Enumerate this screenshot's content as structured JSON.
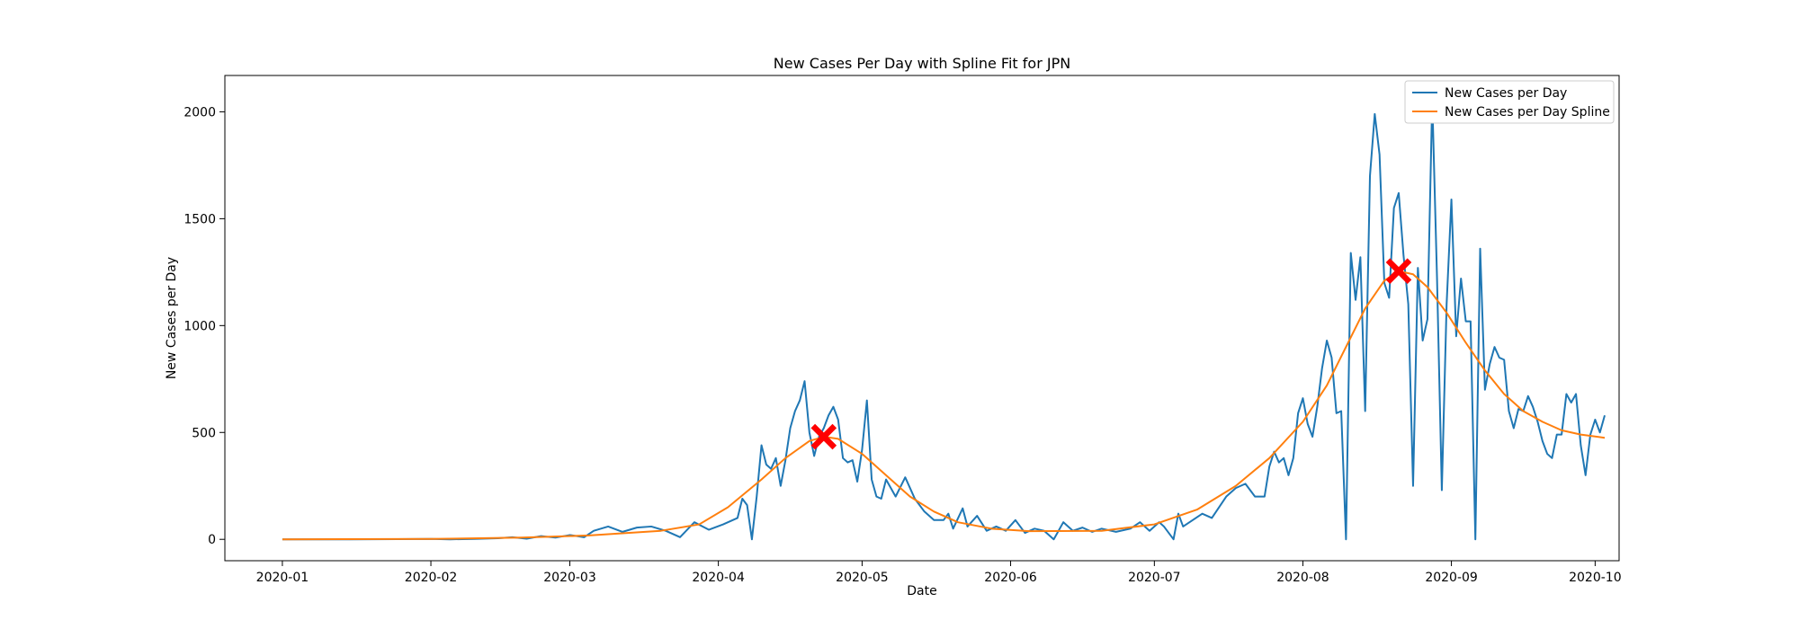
{
  "chart_data": {
    "type": "line",
    "title": "New Cases Per Day with Spline Fit for JPN",
    "xlabel": "Date",
    "ylabel": "New Cases per Day",
    "xlim": [
      "2019-12-20",
      "2020-10-06"
    ],
    "ylim": [
      -100,
      2170
    ],
    "x_ticks": [
      "2020-01-01",
      "2020-02-01",
      "2020-03-01",
      "2020-04-01",
      "2020-05-01",
      "2020-06-01",
      "2020-07-01",
      "2020-08-01",
      "2020-09-01",
      "2020-10-01"
    ],
    "x_tick_labels": [
      "2020-01",
      "2020-02",
      "2020-03",
      "2020-04",
      "2020-05",
      "2020-06",
      "2020-07",
      "2020-08",
      "2020-09",
      "2020-10"
    ],
    "y_ticks": [
      0,
      500,
      1000,
      1500,
      2000
    ],
    "grid": false,
    "legend": {
      "position": "top-right",
      "entries": [
        "New Cases per Day",
        "New Cases per Day Spline"
      ]
    },
    "colors": {
      "raw": "#1f77b4",
      "spline": "#ff7f0e",
      "marker": "#ff0000"
    },
    "series": [
      {
        "name": "New Cases per Day",
        "points": [
          [
            "2020-01-01",
            0
          ],
          [
            "2020-01-15",
            0
          ],
          [
            "2020-01-25",
            1
          ],
          [
            "2020-02-01",
            2
          ],
          [
            "2020-02-05",
            0
          ],
          [
            "2020-02-10",
            2
          ],
          [
            "2020-02-15",
            5
          ],
          [
            "2020-02-18",
            10
          ],
          [
            "2020-02-21",
            3
          ],
          [
            "2020-02-24",
            15
          ],
          [
            "2020-02-27",
            8
          ],
          [
            "2020-03-01",
            20
          ],
          [
            "2020-03-04",
            10
          ],
          [
            "2020-03-06",
            40
          ],
          [
            "2020-03-09",
            60
          ],
          [
            "2020-03-12",
            35
          ],
          [
            "2020-03-15",
            55
          ],
          [
            "2020-03-18",
            60
          ],
          [
            "2020-03-21",
            40
          ],
          [
            "2020-03-24",
            10
          ],
          [
            "2020-03-27",
            80
          ],
          [
            "2020-03-30",
            45
          ],
          [
            "2020-04-02",
            70
          ],
          [
            "2020-04-05",
            100
          ],
          [
            "2020-04-06",
            190
          ],
          [
            "2020-04-07",
            160
          ],
          [
            "2020-04-08",
            0
          ],
          [
            "2020-04-09",
            200
          ],
          [
            "2020-04-10",
            440
          ],
          [
            "2020-04-11",
            350
          ],
          [
            "2020-04-12",
            330
          ],
          [
            "2020-04-13",
            380
          ],
          [
            "2020-04-14",
            250
          ],
          [
            "2020-04-15",
            370
          ],
          [
            "2020-04-16",
            520
          ],
          [
            "2020-04-17",
            600
          ],
          [
            "2020-04-18",
            650
          ],
          [
            "2020-04-19",
            740
          ],
          [
            "2020-04-20",
            500
          ],
          [
            "2020-04-21",
            390
          ],
          [
            "2020-04-22",
            480
          ],
          [
            "2020-04-23",
            520
          ],
          [
            "2020-04-24",
            580
          ],
          [
            "2020-04-25",
            620
          ],
          [
            "2020-04-26",
            560
          ],
          [
            "2020-04-27",
            380
          ],
          [
            "2020-04-28",
            360
          ],
          [
            "2020-04-29",
            370
          ],
          [
            "2020-04-30",
            270
          ],
          [
            "2020-05-01",
            420
          ],
          [
            "2020-05-02",
            650
          ],
          [
            "2020-05-03",
            280
          ],
          [
            "2020-05-04",
            200
          ],
          [
            "2020-05-05",
            190
          ],
          [
            "2020-05-06",
            280
          ],
          [
            "2020-05-08",
            200
          ],
          [
            "2020-05-10",
            290
          ],
          [
            "2020-05-12",
            190
          ],
          [
            "2020-05-14",
            130
          ],
          [
            "2020-05-16",
            90
          ],
          [
            "2020-05-18",
            90
          ],
          [
            "2020-05-19",
            120
          ],
          [
            "2020-05-20",
            50
          ],
          [
            "2020-05-22",
            145
          ],
          [
            "2020-05-23",
            60
          ],
          [
            "2020-05-25",
            110
          ],
          [
            "2020-05-27",
            40
          ],
          [
            "2020-05-29",
            60
          ],
          [
            "2020-05-31",
            40
          ],
          [
            "2020-06-02",
            90
          ],
          [
            "2020-06-04",
            30
          ],
          [
            "2020-06-06",
            50
          ],
          [
            "2020-06-08",
            40
          ],
          [
            "2020-06-10",
            0
          ],
          [
            "2020-06-12",
            80
          ],
          [
            "2020-06-14",
            40
          ],
          [
            "2020-06-16",
            55
          ],
          [
            "2020-06-18",
            35
          ],
          [
            "2020-06-20",
            50
          ],
          [
            "2020-06-23",
            35
          ],
          [
            "2020-06-26",
            50
          ],
          [
            "2020-06-28",
            80
          ],
          [
            "2020-06-30",
            40
          ],
          [
            "2020-07-02",
            80
          ],
          [
            "2020-07-03",
            60
          ],
          [
            "2020-07-05",
            0
          ],
          [
            "2020-07-06",
            120
          ],
          [
            "2020-07-07",
            60
          ],
          [
            "2020-07-09",
            90
          ],
          [
            "2020-07-11",
            120
          ],
          [
            "2020-07-13",
            100
          ],
          [
            "2020-07-16",
            200
          ],
          [
            "2020-07-18",
            240
          ],
          [
            "2020-07-20",
            260
          ],
          [
            "2020-07-22",
            200
          ],
          [
            "2020-07-24",
            200
          ],
          [
            "2020-07-25",
            340
          ],
          [
            "2020-07-26",
            410
          ],
          [
            "2020-07-27",
            360
          ],
          [
            "2020-07-28",
            380
          ],
          [
            "2020-07-29",
            300
          ],
          [
            "2020-07-30",
            380
          ],
          [
            "2020-07-31",
            590
          ],
          [
            "2020-08-01",
            660
          ],
          [
            "2020-08-02",
            540
          ],
          [
            "2020-08-03",
            480
          ],
          [
            "2020-08-04",
            620
          ],
          [
            "2020-08-05",
            800
          ],
          [
            "2020-08-06",
            930
          ],
          [
            "2020-08-07",
            850
          ],
          [
            "2020-08-08",
            590
          ],
          [
            "2020-08-09",
            600
          ],
          [
            "2020-08-10",
            0
          ],
          [
            "2020-08-11",
            1340
          ],
          [
            "2020-08-12",
            1120
          ],
          [
            "2020-08-13",
            1320
          ],
          [
            "2020-08-14",
            600
          ],
          [
            "2020-08-15",
            1700
          ],
          [
            "2020-08-16",
            1990
          ],
          [
            "2020-08-17",
            1800
          ],
          [
            "2020-08-18",
            1200
          ],
          [
            "2020-08-19",
            1130
          ],
          [
            "2020-08-20",
            1550
          ],
          [
            "2020-08-21",
            1620
          ],
          [
            "2020-08-22",
            1330
          ],
          [
            "2020-08-23",
            1100
          ],
          [
            "2020-08-24",
            250
          ],
          [
            "2020-08-25",
            1270
          ],
          [
            "2020-08-26",
            930
          ],
          [
            "2020-08-27",
            1030
          ],
          [
            "2020-08-28",
            2060
          ],
          [
            "2020-08-29",
            1220
          ],
          [
            "2020-08-30",
            230
          ],
          [
            "2020-08-31",
            1100
          ],
          [
            "2020-09-01",
            1590
          ],
          [
            "2020-09-02",
            950
          ],
          [
            "2020-09-03",
            1220
          ],
          [
            "2020-09-04",
            1020
          ],
          [
            "2020-09-05",
            1020
          ],
          [
            "2020-09-06",
            0
          ],
          [
            "2020-09-07",
            1360
          ],
          [
            "2020-09-08",
            700
          ],
          [
            "2020-09-09",
            820
          ],
          [
            "2020-09-10",
            900
          ],
          [
            "2020-09-11",
            850
          ],
          [
            "2020-09-12",
            840
          ],
          [
            "2020-09-13",
            600
          ],
          [
            "2020-09-14",
            520
          ],
          [
            "2020-09-15",
            610
          ],
          [
            "2020-09-16",
            600
          ],
          [
            "2020-09-17",
            670
          ],
          [
            "2020-09-18",
            620
          ],
          [
            "2020-09-19",
            550
          ],
          [
            "2020-09-20",
            460
          ],
          [
            "2020-09-21",
            400
          ],
          [
            "2020-09-22",
            380
          ],
          [
            "2020-09-23",
            490
          ],
          [
            "2020-09-24",
            490
          ],
          [
            "2020-09-25",
            680
          ],
          [
            "2020-09-26",
            640
          ],
          [
            "2020-09-27",
            680
          ],
          [
            "2020-09-28",
            440
          ],
          [
            "2020-09-29",
            300
          ],
          [
            "2020-09-30",
            490
          ],
          [
            "2020-10-01",
            560
          ],
          [
            "2020-10-02",
            500
          ],
          [
            "2020-10-03",
            580
          ]
        ]
      },
      {
        "name": "New Cases per Day Spline",
        "points": [
          [
            "2020-01-01",
            0
          ],
          [
            "2020-02-01",
            2
          ],
          [
            "2020-02-20",
            8
          ],
          [
            "2020-03-05",
            18
          ],
          [
            "2020-03-20",
            40
          ],
          [
            "2020-03-28",
            70
          ],
          [
            "2020-04-03",
            150
          ],
          [
            "2020-04-10",
            280
          ],
          [
            "2020-04-15",
            380
          ],
          [
            "2020-04-20",
            460
          ],
          [
            "2020-04-23",
            480
          ],
          [
            "2020-04-26",
            470
          ],
          [
            "2020-05-01",
            400
          ],
          [
            "2020-05-06",
            300
          ],
          [
            "2020-05-11",
            200
          ],
          [
            "2020-05-16",
            130
          ],
          [
            "2020-05-21",
            80
          ],
          [
            "2020-05-28",
            50
          ],
          [
            "2020-06-05",
            38
          ],
          [
            "2020-06-20",
            40
          ],
          [
            "2020-07-01",
            70
          ],
          [
            "2020-07-10",
            140
          ],
          [
            "2020-07-18",
            250
          ],
          [
            "2020-07-25",
            380
          ],
          [
            "2020-08-01",
            550
          ],
          [
            "2020-08-06",
            720
          ],
          [
            "2020-08-10",
            900
          ],
          [
            "2020-08-14",
            1080
          ],
          [
            "2020-08-18",
            1210
          ],
          [
            "2020-08-21",
            1255
          ],
          [
            "2020-08-24",
            1240
          ],
          [
            "2020-08-27",
            1180
          ],
          [
            "2020-08-31",
            1060
          ],
          [
            "2020-09-04",
            920
          ],
          [
            "2020-09-08",
            790
          ],
          [
            "2020-09-12",
            680
          ],
          [
            "2020-09-16",
            600
          ],
          [
            "2020-09-20",
            550
          ],
          [
            "2020-09-24",
            510
          ],
          [
            "2020-09-28",
            490
          ],
          [
            "2020-10-03",
            475
          ]
        ]
      }
    ],
    "markers": [
      {
        "x": "2020-04-23",
        "y": 480
      },
      {
        "x": "2020-08-21",
        "y": 1255
      }
    ]
  }
}
